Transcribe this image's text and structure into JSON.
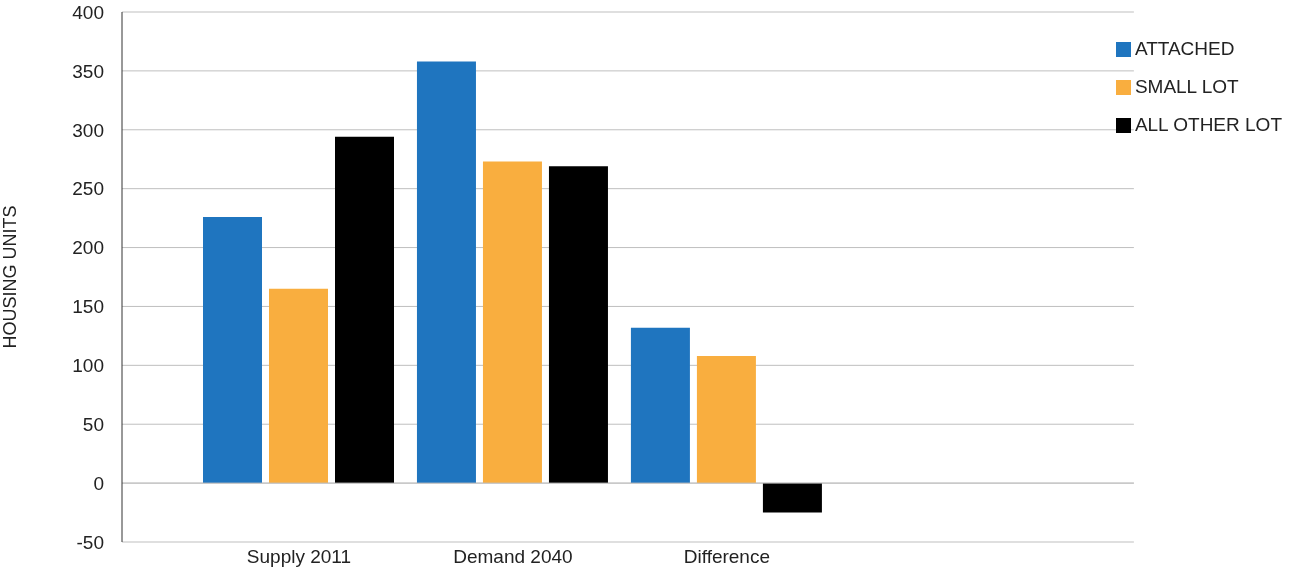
{
  "chart_data": {
    "type": "bar",
    "ylabel": "HOUSING UNITS",
    "categories": [
      "Supply 2011",
      "Demand 2040",
      "Difference"
    ],
    "series": [
      {
        "name": "ATTACHED",
        "color": "#1f75bf",
        "values": [
          226,
          358,
          132
        ]
      },
      {
        "name": "SMALL LOT",
        "color": "#f9ae3f",
        "values": [
          165,
          273,
          108
        ]
      },
      {
        "name": "ALL OTHER LOT",
        "color": "#000000",
        "values": [
          294,
          269,
          -25
        ]
      }
    ],
    "ylim": [
      -50,
      400
    ],
    "yticks": [
      -50,
      0,
      50,
      100,
      150,
      200,
      250,
      300,
      350,
      400
    ],
    "grid": "y",
    "legend": "top right"
  }
}
